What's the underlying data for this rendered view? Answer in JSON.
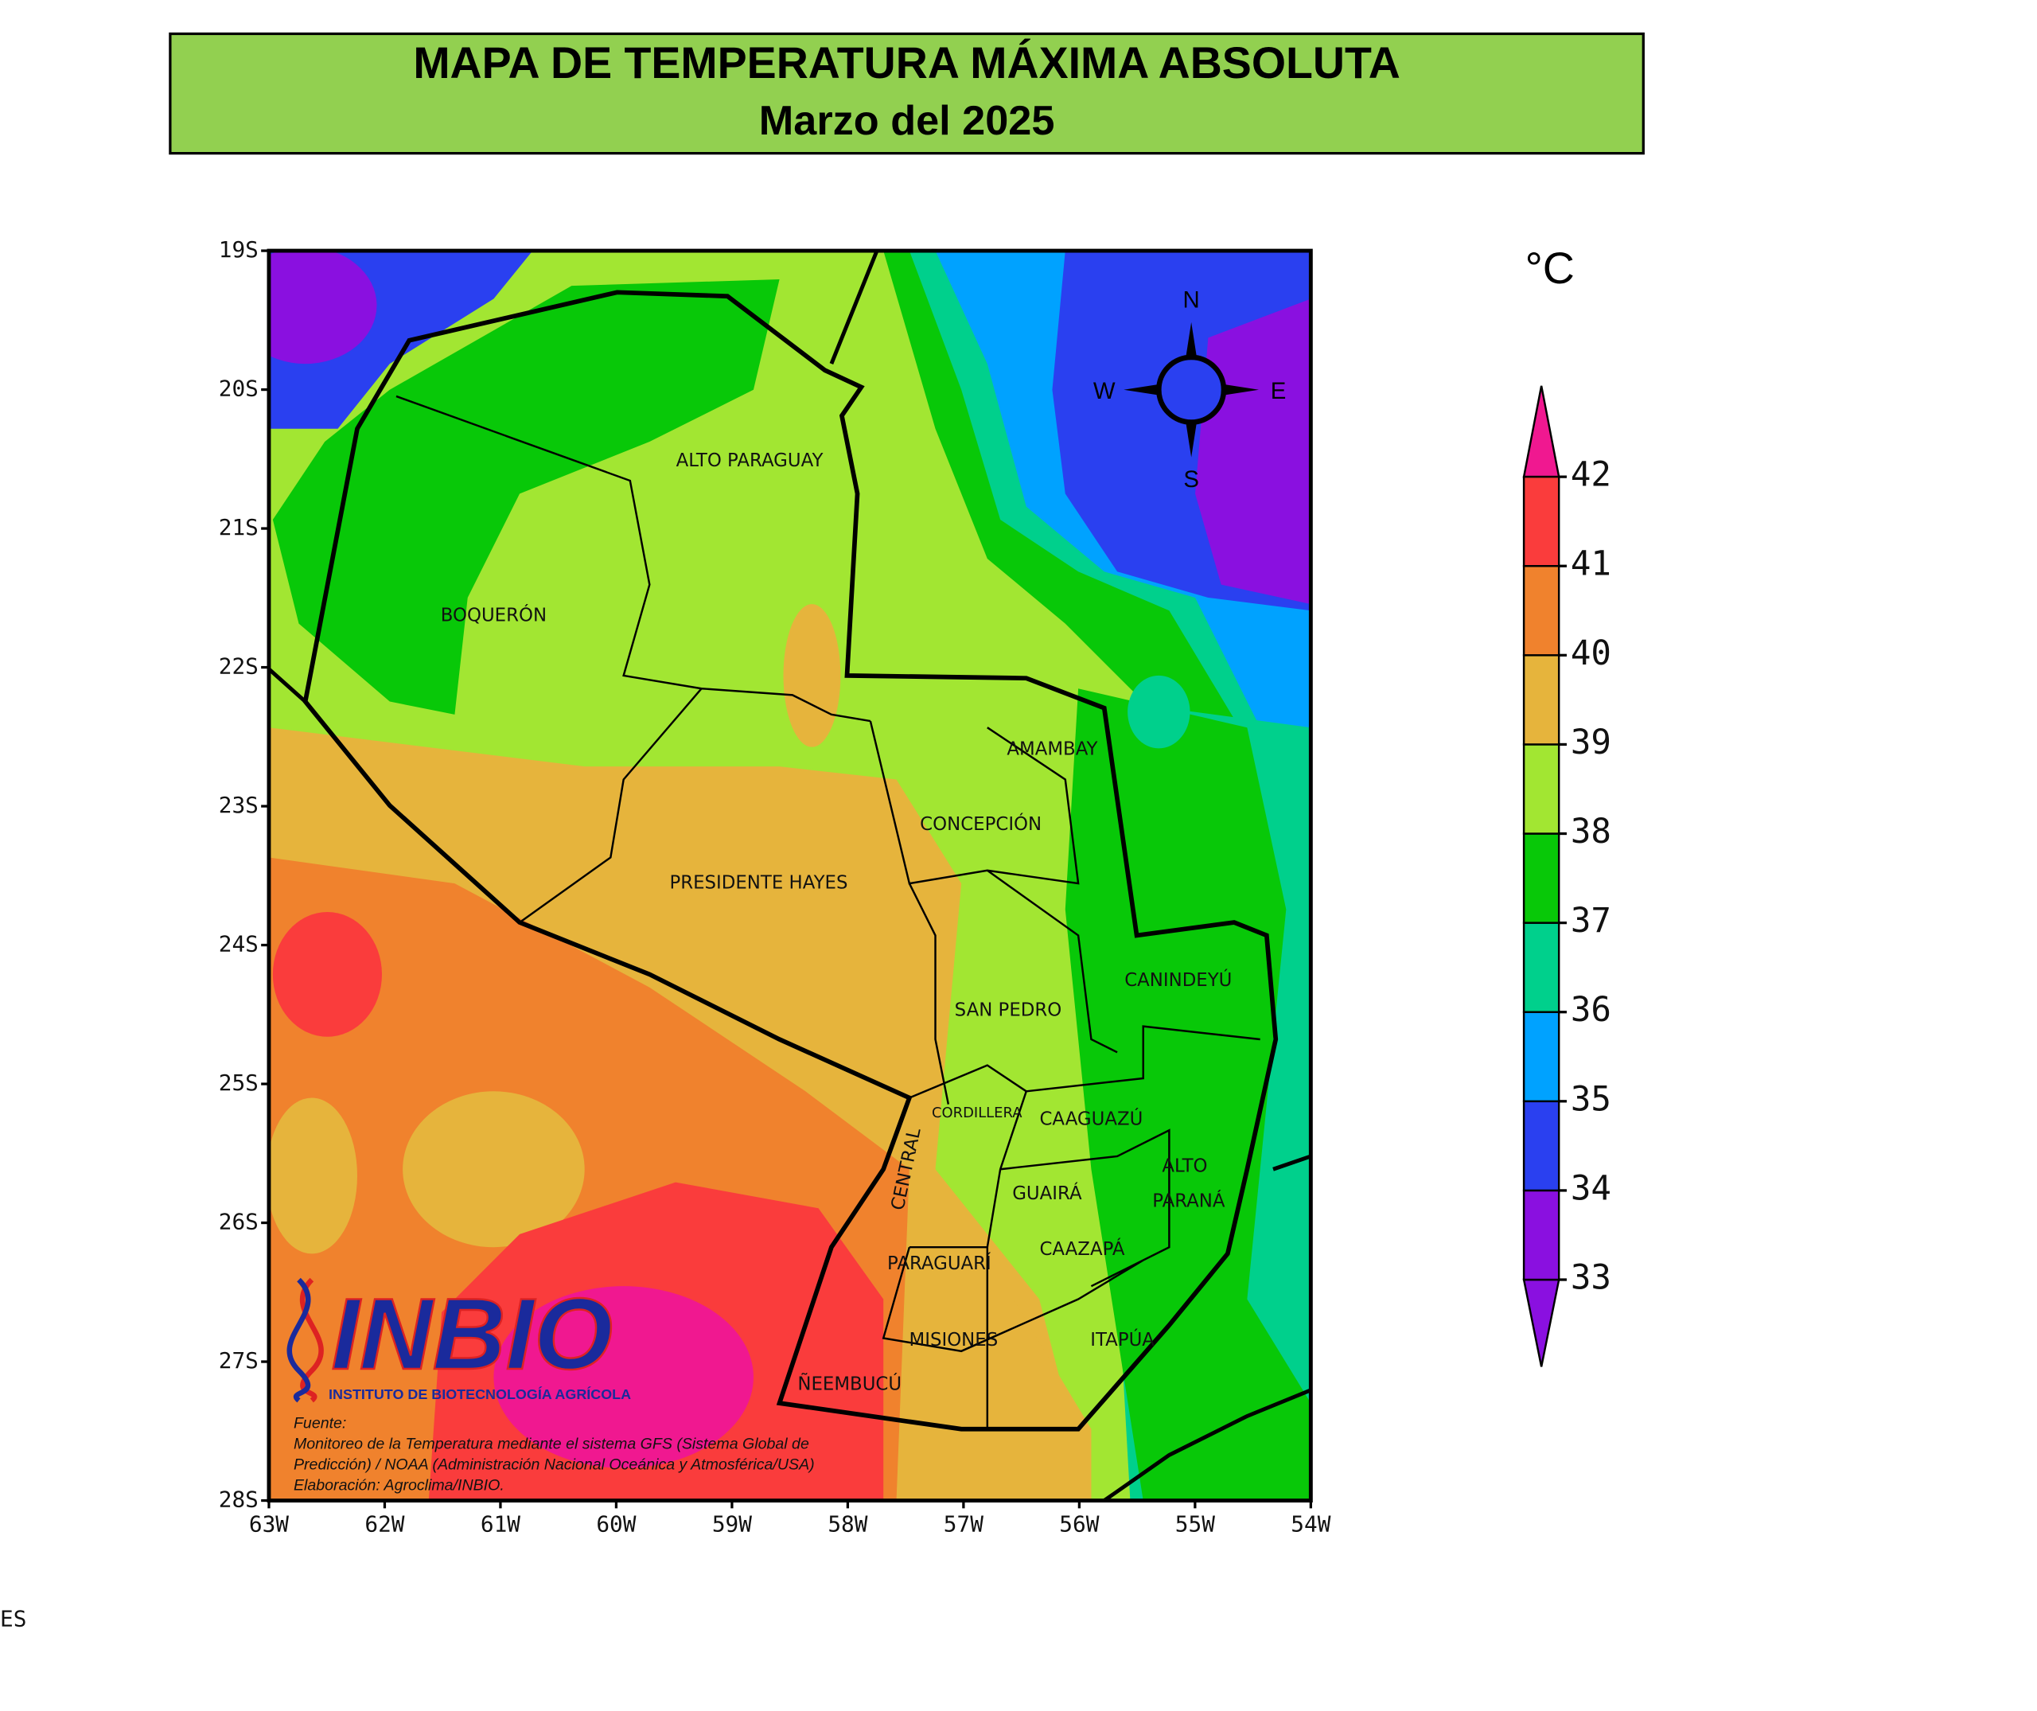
{
  "header": {
    "title": "MAPA DE TEMPERATURA MÁXIMA ABSOLUTA",
    "subtitle": "Marzo del 2025"
  },
  "map": {
    "lat_labels": [
      "19S",
      "20S",
      "21S",
      "22S",
      "23S",
      "24S",
      "25S",
      "26S",
      "27S",
      "28S"
    ],
    "lon_labels": [
      "63W",
      "62W",
      "61W",
      "60W",
      "59W",
      "58W",
      "57W",
      "56W",
      "55W",
      "54W"
    ],
    "departments": [
      "ALTO PARAGUAY",
      "BOQUERÓN",
      "AMAMBAY",
      "CONCEPCIÓN",
      "PRESIDENTE HAYES",
      "CANINDEYÚ",
      "SAN PEDRO",
      "CORDILLERA",
      "CAAGUAZÚ",
      "ALTO",
      "PARANÁ",
      "GUAIRÁ",
      "CENTRAL",
      "CAAZAPÁ",
      "PARAGUARÍ",
      "MISIONES",
      "ITAPÚA",
      "ÑEEMBUCÚ"
    ],
    "compass": {
      "north": "N",
      "south": "S",
      "west": "W",
      "east": "E"
    }
  },
  "legend": {
    "unit": "°C",
    "ticks": [
      33,
      34,
      35,
      36,
      37,
      38,
      39,
      40,
      41,
      42
    ],
    "colors": [
      "#8a10e0",
      "#8a10e0",
      "#2a40f0",
      "#00a2ff",
      "#00d08c",
      "#08c808",
      "#a2e632",
      "#e6b43c",
      "#f0822d",
      "#fa3c3c",
      "#f01890"
    ]
  },
  "logo": {
    "name": "INBIO",
    "tagline": "INSTITUTO DE BIOTECNOLOGÍA AGRÍCOLA"
  },
  "source": {
    "lines": [
      "Fuente:",
      "Monitoreo de la Temperatura mediante el sistema GFS (Sistema Global de",
      "Predicción) / NOAA (Administración Nacional Oceánica y Atmosférica/USA)",
      "Elaboración: Agroclima/INBIO."
    ]
  },
  "footer": {
    "fragment": "ES"
  }
}
